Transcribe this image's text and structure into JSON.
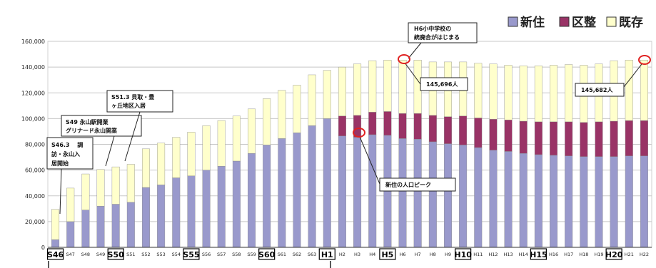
{
  "chart_data": {
    "type": "bar",
    "stacked": true,
    "categories": [
      "S46",
      "S47",
      "S48",
      "S49",
      "S50",
      "S51",
      "S52",
      "S53",
      "S54",
      "S55",
      "S56",
      "S57",
      "S58",
      "S59",
      "S60",
      "S61",
      "S62",
      "S63",
      "H1",
      "H2",
      "H3",
      "H4",
      "H5",
      "H6",
      "H7",
      "H8",
      "H9",
      "H10",
      "H11",
      "H12",
      "H13",
      "H14",
      "H15",
      "H16",
      "H17",
      "H18",
      "H19",
      "H20",
      "H21",
      "H22"
    ],
    "boxed_categories": [
      "S46",
      "S50",
      "S55",
      "S60",
      "H1",
      "H5",
      "H10",
      "H15",
      "H20"
    ],
    "ylim": [
      0,
      160000
    ],
    "yticks": [
      0,
      20000,
      40000,
      60000,
      80000,
      100000,
      120000,
      140000,
      160000
    ],
    "ytick_labels": [
      "0",
      "20,000",
      "40,000",
      "60,000",
      "80,000",
      "100,000",
      "120,000",
      "140,000",
      "160,000"
    ],
    "grid": true,
    "legend_position": "top-right",
    "series": [
      {
        "name": "新住",
        "color": "#9999cc",
        "values": [
          6000,
          20000,
          29000,
          32000,
          33500,
          35000,
          46500,
          48500,
          54000,
          55500,
          60000,
          63000,
          67000,
          73000,
          79500,
          84500,
          89000,
          94500,
          100000,
          86500,
          85500,
          87500,
          87000,
          84500,
          84000,
          82000,
          80500,
          79500,
          77500,
          75500,
          74500,
          73000,
          72000,
          71500,
          71000,
          70500,
          70500,
          70500,
          71000,
          71000
        ]
      },
      {
        "name": "区整",
        "color": "#993366",
        "values": [
          0,
          0,
          0,
          0,
          0,
          0,
          0,
          0,
          0,
          0,
          0,
          0,
          0,
          0,
          0,
          0,
          0,
          0,
          0,
          15500,
          17000,
          17500,
          18500,
          19500,
          20000,
          20500,
          21000,
          22500,
          23000,
          24000,
          24500,
          25000,
          25500,
          26000,
          26500,
          26500,
          27000,
          27500,
          27500,
          27500
        ]
      },
      {
        "name": "既存",
        "color": "#ffffcc",
        "values": [
          23500,
          26000,
          28000,
          28500,
          29000,
          29500,
          30000,
          32500,
          31500,
          34000,
          34500,
          35500,
          35000,
          34500,
          36000,
          37500,
          37000,
          39500,
          37500,
          38000,
          40000,
          40000,
          40000,
          41500,
          41500,
          41500,
          42500,
          42000,
          42500,
          43000,
          42500,
          43000,
          43500,
          44000,
          44500,
          44500,
          45000,
          47000,
          47000,
          47000
        ]
      }
    ],
    "annotations": [
      {
        "text_lines": [
          "S46.3 　調",
          "訪・永山入",
          "居開始"
        ]
      },
      {
        "text_lines": [
          "S49 永山駅開業",
          "グリナード永山開業"
        ]
      },
      {
        "text_lines": [
          "S51.3 貝取・豊",
          "ヶ丘地区入居"
        ]
      },
      {
        "text_lines": [
          "H6小中学校の",
          "統廃合がはじまる"
        ]
      },
      {
        "text_lines": [
          "145,696人"
        ]
      },
      {
        "text_lines": [
          "新住の人口ピーク"
        ]
      },
      {
        "text_lines": [
          "145,682人"
        ]
      }
    ]
  }
}
